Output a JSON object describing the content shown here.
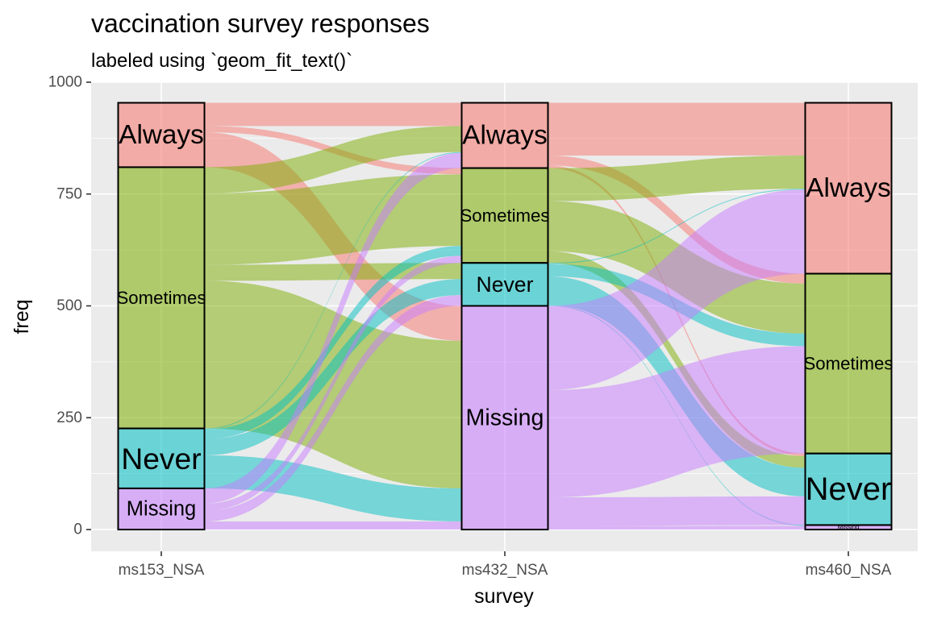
{
  "chart_data": {
    "type": "alluvial",
    "title": "vaccination survey responses",
    "subtitle": "labeled using `geom_fit_text()`",
    "xlabel": "survey",
    "ylabel": "freq",
    "ylim": [
      0,
      1000
    ],
    "yticks": [
      0,
      250,
      500,
      750,
      1000
    ],
    "grid": true,
    "legend": "none",
    "axes": [
      "ms153_NSA",
      "ms432_NSA",
      "ms460_NSA"
    ],
    "response_order": [
      "Always",
      "Sometimes",
      "Never",
      "Missing"
    ],
    "colors": {
      "Always": "#F8766D",
      "Sometimes": "#7CAE00",
      "Never": "#00BFC4",
      "Missing": "#C77CFF"
    },
    "strata": [
      [
        {
          "response": "Always",
          "count": 144
        },
        {
          "response": "Sometimes",
          "count": 584
        },
        {
          "response": "Never",
          "count": 134
        },
        {
          "response": "Missing",
          "count": 92
        }
      ],
      [
        {
          "response": "Always",
          "count": 146
        },
        {
          "response": "Sometimes",
          "count": 212
        },
        {
          "response": "Never",
          "count": 96
        },
        {
          "response": "Missing",
          "count": 500
        }
      ],
      [
        {
          "response": "Always",
          "count": 382
        },
        {
          "response": "Sometimes",
          "count": 402
        },
        {
          "response": "Never",
          "count": 160
        },
        {
          "response": "Missing",
          "count": 10
        }
      ]
    ],
    "flows": [
      [
        {
          "from": "Always",
          "to": "Always",
          "count": 52
        },
        {
          "from": "Always",
          "to": "Sometimes",
          "count": 14
        },
        {
          "from": "Always",
          "to": "Missing",
          "count": 78
        },
        {
          "from": "Sometimes",
          "to": "Always",
          "count": 58
        },
        {
          "from": "Sometimes",
          "to": "Sometimes",
          "count": 160
        },
        {
          "from": "Sometimes",
          "to": "Never",
          "count": 36
        },
        {
          "from": "Sometimes",
          "to": "Missing",
          "count": 330
        },
        {
          "from": "Never",
          "to": "Always",
          "count": 2
        },
        {
          "from": "Never",
          "to": "Sometimes",
          "count": 22
        },
        {
          "from": "Never",
          "to": "Never",
          "count": 36
        },
        {
          "from": "Never",
          "to": "Missing",
          "count": 74
        },
        {
          "from": "Missing",
          "to": "Always",
          "count": 34
        },
        {
          "from": "Missing",
          "to": "Sometimes",
          "count": 16
        },
        {
          "from": "Missing",
          "to": "Never",
          "count": 24
        },
        {
          "from": "Missing",
          "to": "Missing",
          "count": 18
        }
      ],
      [
        {
          "from": "Always",
          "to": "Always",
          "count": 118
        },
        {
          "from": "Always",
          "to": "Sometimes",
          "count": 22
        },
        {
          "from": "Always",
          "to": "Never",
          "count": 6
        },
        {
          "from": "Sometimes",
          "to": "Always",
          "count": 74
        },
        {
          "from": "Sometimes",
          "to": "Sometimes",
          "count": 112
        },
        {
          "from": "Sometimes",
          "to": "Never",
          "count": 26
        },
        {
          "from": "Never",
          "to": "Always",
          "count": 2
        },
        {
          "from": "Never",
          "to": "Sometimes",
          "count": 28
        },
        {
          "from": "Never",
          "to": "Never",
          "count": 64
        },
        {
          "from": "Never",
          "to": "Missing",
          "count": 2
        },
        {
          "from": "Missing",
          "to": "Always",
          "count": 188
        },
        {
          "from": "Missing",
          "to": "Sometimes",
          "count": 240
        },
        {
          "from": "Missing",
          "to": "Never",
          "count": 64
        },
        {
          "from": "Missing",
          "to": "Missing",
          "count": 8
        }
      ]
    ]
  }
}
